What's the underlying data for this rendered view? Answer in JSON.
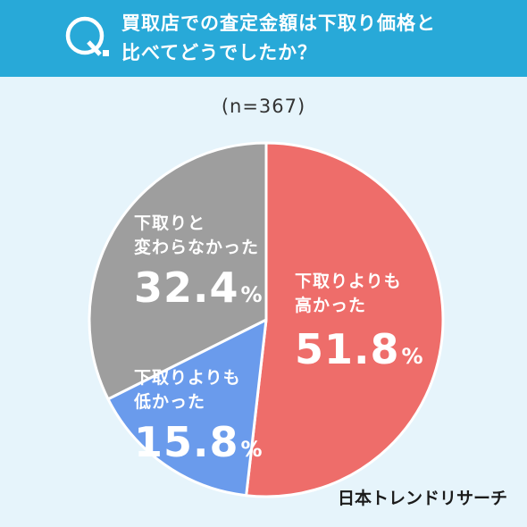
{
  "question": {
    "mark": "Q.",
    "title_line1": "買取店での査定金額は下取り価格と",
    "title_line2": "比べてどうでしたか？"
  },
  "sample_size": "(n=367)",
  "brand": "日本トレンドリサーチ",
  "colors": {
    "header": "#28a9d8",
    "background": "#e6f4fb",
    "higher": "#ee6d6a",
    "lower": "#6a9bec",
    "same": "#9e9e9e"
  },
  "chart_data": {
    "type": "pie",
    "title": "買取店での査定金額は下取り価格と比べてどうでしたか？",
    "n": 367,
    "start": "12 o'clock",
    "direction": "clockwise",
    "slices": [
      {
        "label_line1": "下取りよりも",
        "label_line2": "高かった",
        "value": 51.8,
        "value_text": "51.8",
        "unit": "%",
        "color": "#ee6d6a"
      },
      {
        "label_line1": "下取りよりも",
        "label_line2": "低かった",
        "value": 15.8,
        "value_text": "15.8",
        "unit": "%",
        "color": "#6a9bec"
      },
      {
        "label_line1": "下取りと",
        "label_line2": "変わらなかった",
        "value": 32.4,
        "value_text": "32.4",
        "unit": "%",
        "color": "#9e9e9e"
      }
    ]
  }
}
